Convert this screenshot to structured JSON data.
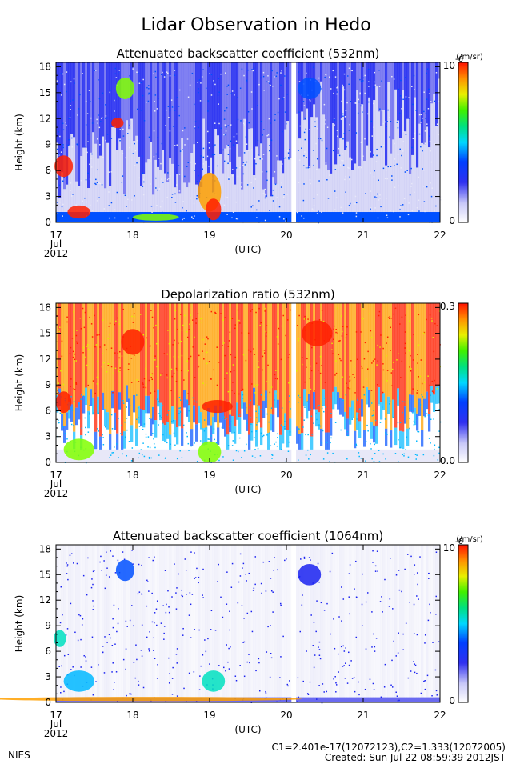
{
  "title": "Lidar Observation in Hedo",
  "footer": {
    "org": "NIES",
    "calib": "C1=2.401e-17(12072123),C2=1.333(12072005)",
    "created": "Created: Sun Jul 22 08:59:39 2012JST"
  },
  "palette": [
    "#e8e8f8",
    "#b8b8f0",
    "#6a6af0",
    "#1a22f0",
    "#0050ff",
    "#00b8ff",
    "#00e0c0",
    "#00e040",
    "#80ff00",
    "#e0f000",
    "#ffa000",
    "#ff2000"
  ],
  "chart_data": [
    {
      "type": "heatmap",
      "title": "Attenuated backscatter coefficient (532nm)",
      "ylabel": "Height (km)",
      "xlabel": "(UTC)",
      "x_ticks": [
        "17",
        "18",
        "19",
        "20",
        "21",
        "22"
      ],
      "x_sub": [
        "Jul",
        "2012"
      ],
      "y_ticks": [
        "0",
        "3",
        "6",
        "9",
        "12",
        "15",
        "18"
      ],
      "ylim": [
        0,
        18.5
      ],
      "xlim": [
        17,
        22
      ],
      "colorbar": {
        "min": "0",
        "max": "10",
        "max_exp": "-6",
        "unit": "(/m/sr)"
      },
      "grid": false
    },
    {
      "type": "heatmap",
      "title": "Depolarization ratio (532nm)",
      "ylabel": "Height (km)",
      "xlabel": "(UTC)",
      "x_ticks": [
        "17",
        "18",
        "19",
        "20",
        "21",
        "22"
      ],
      "x_sub": [
        "Jul",
        "2012"
      ],
      "y_ticks": [
        "0",
        "3",
        "6",
        "9",
        "12",
        "15",
        "18"
      ],
      "ylim": [
        0,
        18.5
      ],
      "xlim": [
        17,
        22
      ],
      "colorbar": {
        "min": "0.0",
        "max": "0.3",
        "max_exp": "",
        "unit": ""
      },
      "grid": false
    },
    {
      "type": "heatmap",
      "title": "Attenuated backscatter coefficient (1064nm)",
      "ylabel": "Height (km)",
      "xlabel": "(UTC)",
      "x_ticks": [
        "17",
        "18",
        "19",
        "20",
        "21",
        "22"
      ],
      "x_sub": [
        "Jul",
        "2012"
      ],
      "y_ticks": [
        "0",
        "3",
        "6",
        "9",
        "12",
        "15",
        "18"
      ],
      "ylim": [
        0,
        18.5
      ],
      "xlim": [
        17,
        22
      ],
      "colorbar": {
        "min": "0",
        "max": "10",
        "max_exp": "-6",
        "unit": "(/m/sr)"
      },
      "grid": false
    }
  ]
}
